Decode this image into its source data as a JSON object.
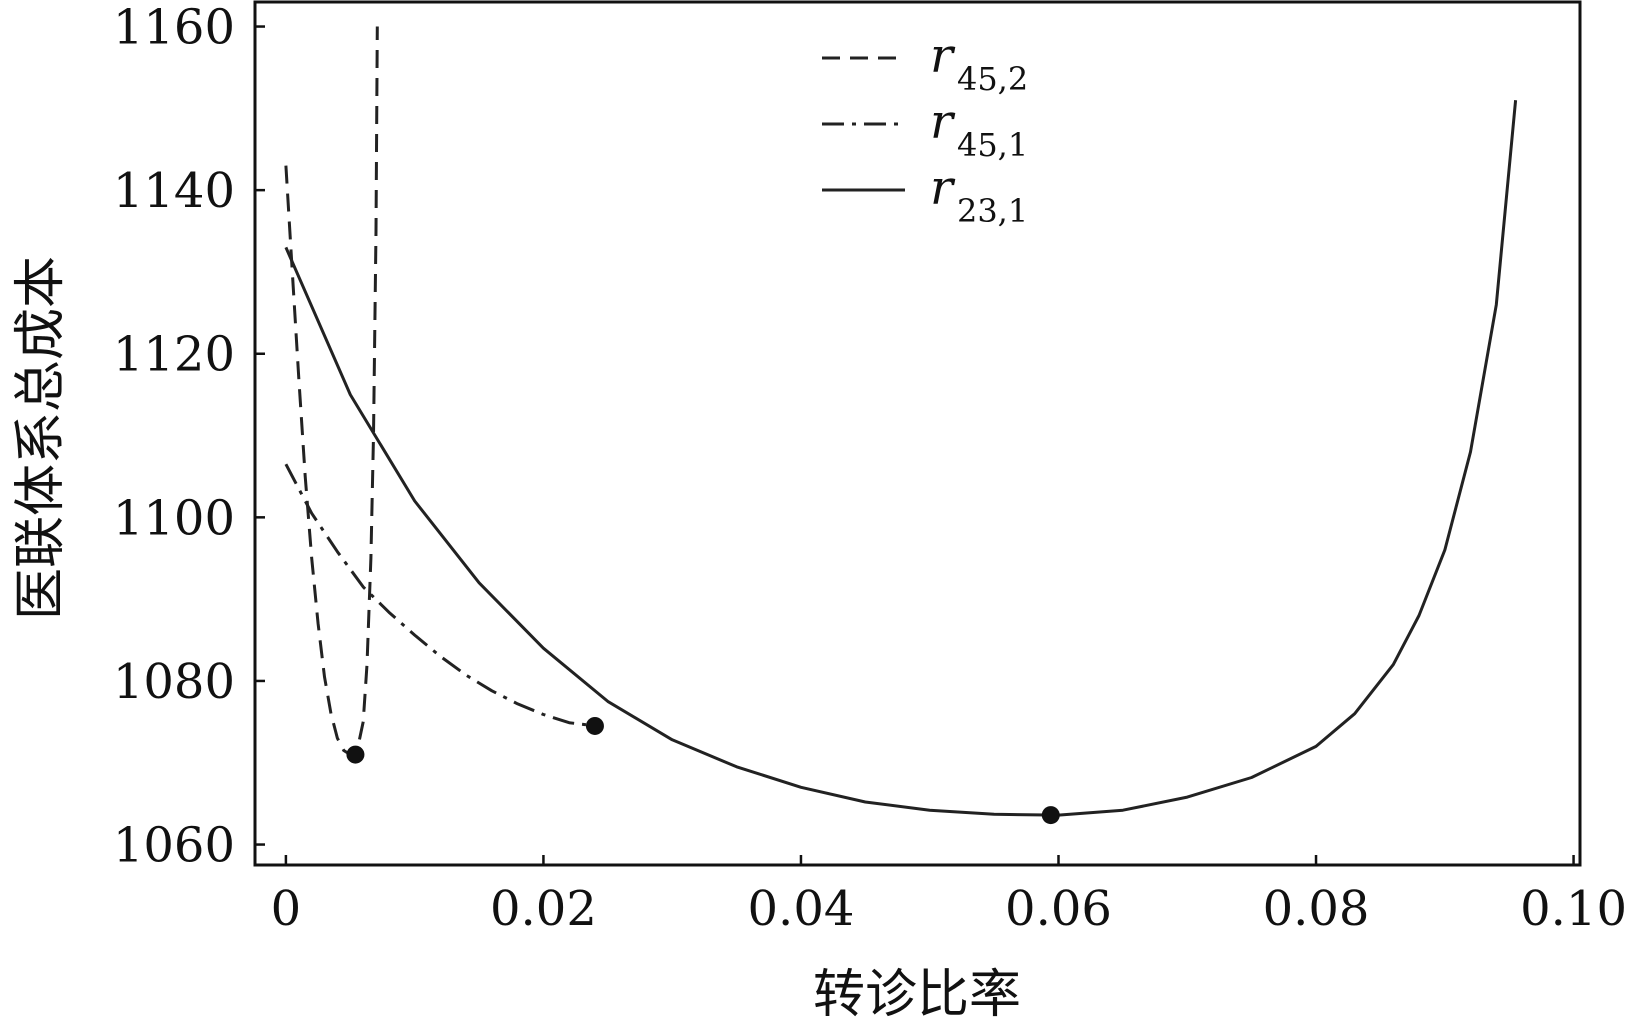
{
  "chart_data": {
    "type": "line",
    "title": "",
    "xlabel": "转诊比率",
    "ylabel": "医联体系总成本",
    "xlim": [
      -0.0024,
      0.1005
    ],
    "ylim": [
      1057.5,
      1163
    ],
    "xticks": [
      0,
      0.02,
      0.04,
      0.06,
      0.08,
      0.1
    ],
    "xtick_labels": [
      "0",
      "0.02",
      "0.04",
      "0.06",
      "0.08",
      "0.10"
    ],
    "yticks": [
      1060,
      1080,
      1100,
      1120,
      1140,
      1160
    ],
    "ytick_labels": [
      "1060",
      "1080",
      "1100",
      "1120",
      "1140",
      "1160"
    ],
    "grid": false,
    "legend_position": "top-center",
    "series": [
      {
        "name": "r45,2",
        "name_base": "r",
        "name_sub": "45,2",
        "style": "dashed",
        "x": [
          0.0,
          0.0005,
          0.001,
          0.0015,
          0.002,
          0.0025,
          0.003,
          0.0035,
          0.004,
          0.0045,
          0.005,
          0.0053,
          0.0056,
          0.006,
          0.0063,
          0.0066,
          0.0068,
          0.007,
          0.0071
        ],
        "y": [
          1143,
          1130,
          1117,
          1105,
          1095,
          1087,
          1080.5,
          1076,
          1073,
          1071.5,
          1071,
          1071.2,
          1072,
          1075,
          1082,
          1095,
          1110,
          1135,
          1160
        ],
        "min_point": {
          "x": 0.0054,
          "y": 1071
        }
      },
      {
        "name": "r45,1",
        "name_base": "r",
        "name_sub": "45,1",
        "style": "dashdot",
        "x": [
          0.0,
          0.002,
          0.004,
          0.006,
          0.008,
          0.01,
          0.012,
          0.014,
          0.016,
          0.018,
          0.02,
          0.022,
          0.024
        ],
        "y": [
          1106.5,
          1100.5,
          1095.8,
          1091.5,
          1088.4,
          1085.6,
          1083.0,
          1080.7,
          1078.8,
          1077.2,
          1075.9,
          1074.9,
          1074.5
        ],
        "min_point": {
          "x": 0.024,
          "y": 1074.5
        }
      },
      {
        "name": "r23,1",
        "name_base": "r",
        "name_sub": "23,1",
        "style": "solid",
        "x": [
          0.0,
          0.005,
          0.01,
          0.015,
          0.02,
          0.025,
          0.03,
          0.035,
          0.04,
          0.045,
          0.05,
          0.055,
          0.06,
          0.065,
          0.07,
          0.075,
          0.08,
          0.083,
          0.086,
          0.088,
          0.09,
          0.092,
          0.094,
          0.0955
        ],
        "y": [
          1133,
          1115,
          1102,
          1092,
          1084,
          1077.5,
          1072.8,
          1069.5,
          1067.0,
          1065.2,
          1064.2,
          1063.7,
          1063.6,
          1064.2,
          1065.8,
          1068.2,
          1072,
          1076,
          1082,
          1088,
          1096,
          1108,
          1126,
          1151
        ],
        "min_point": {
          "x": 0.0594,
          "y": 1063.6
        }
      }
    ]
  }
}
